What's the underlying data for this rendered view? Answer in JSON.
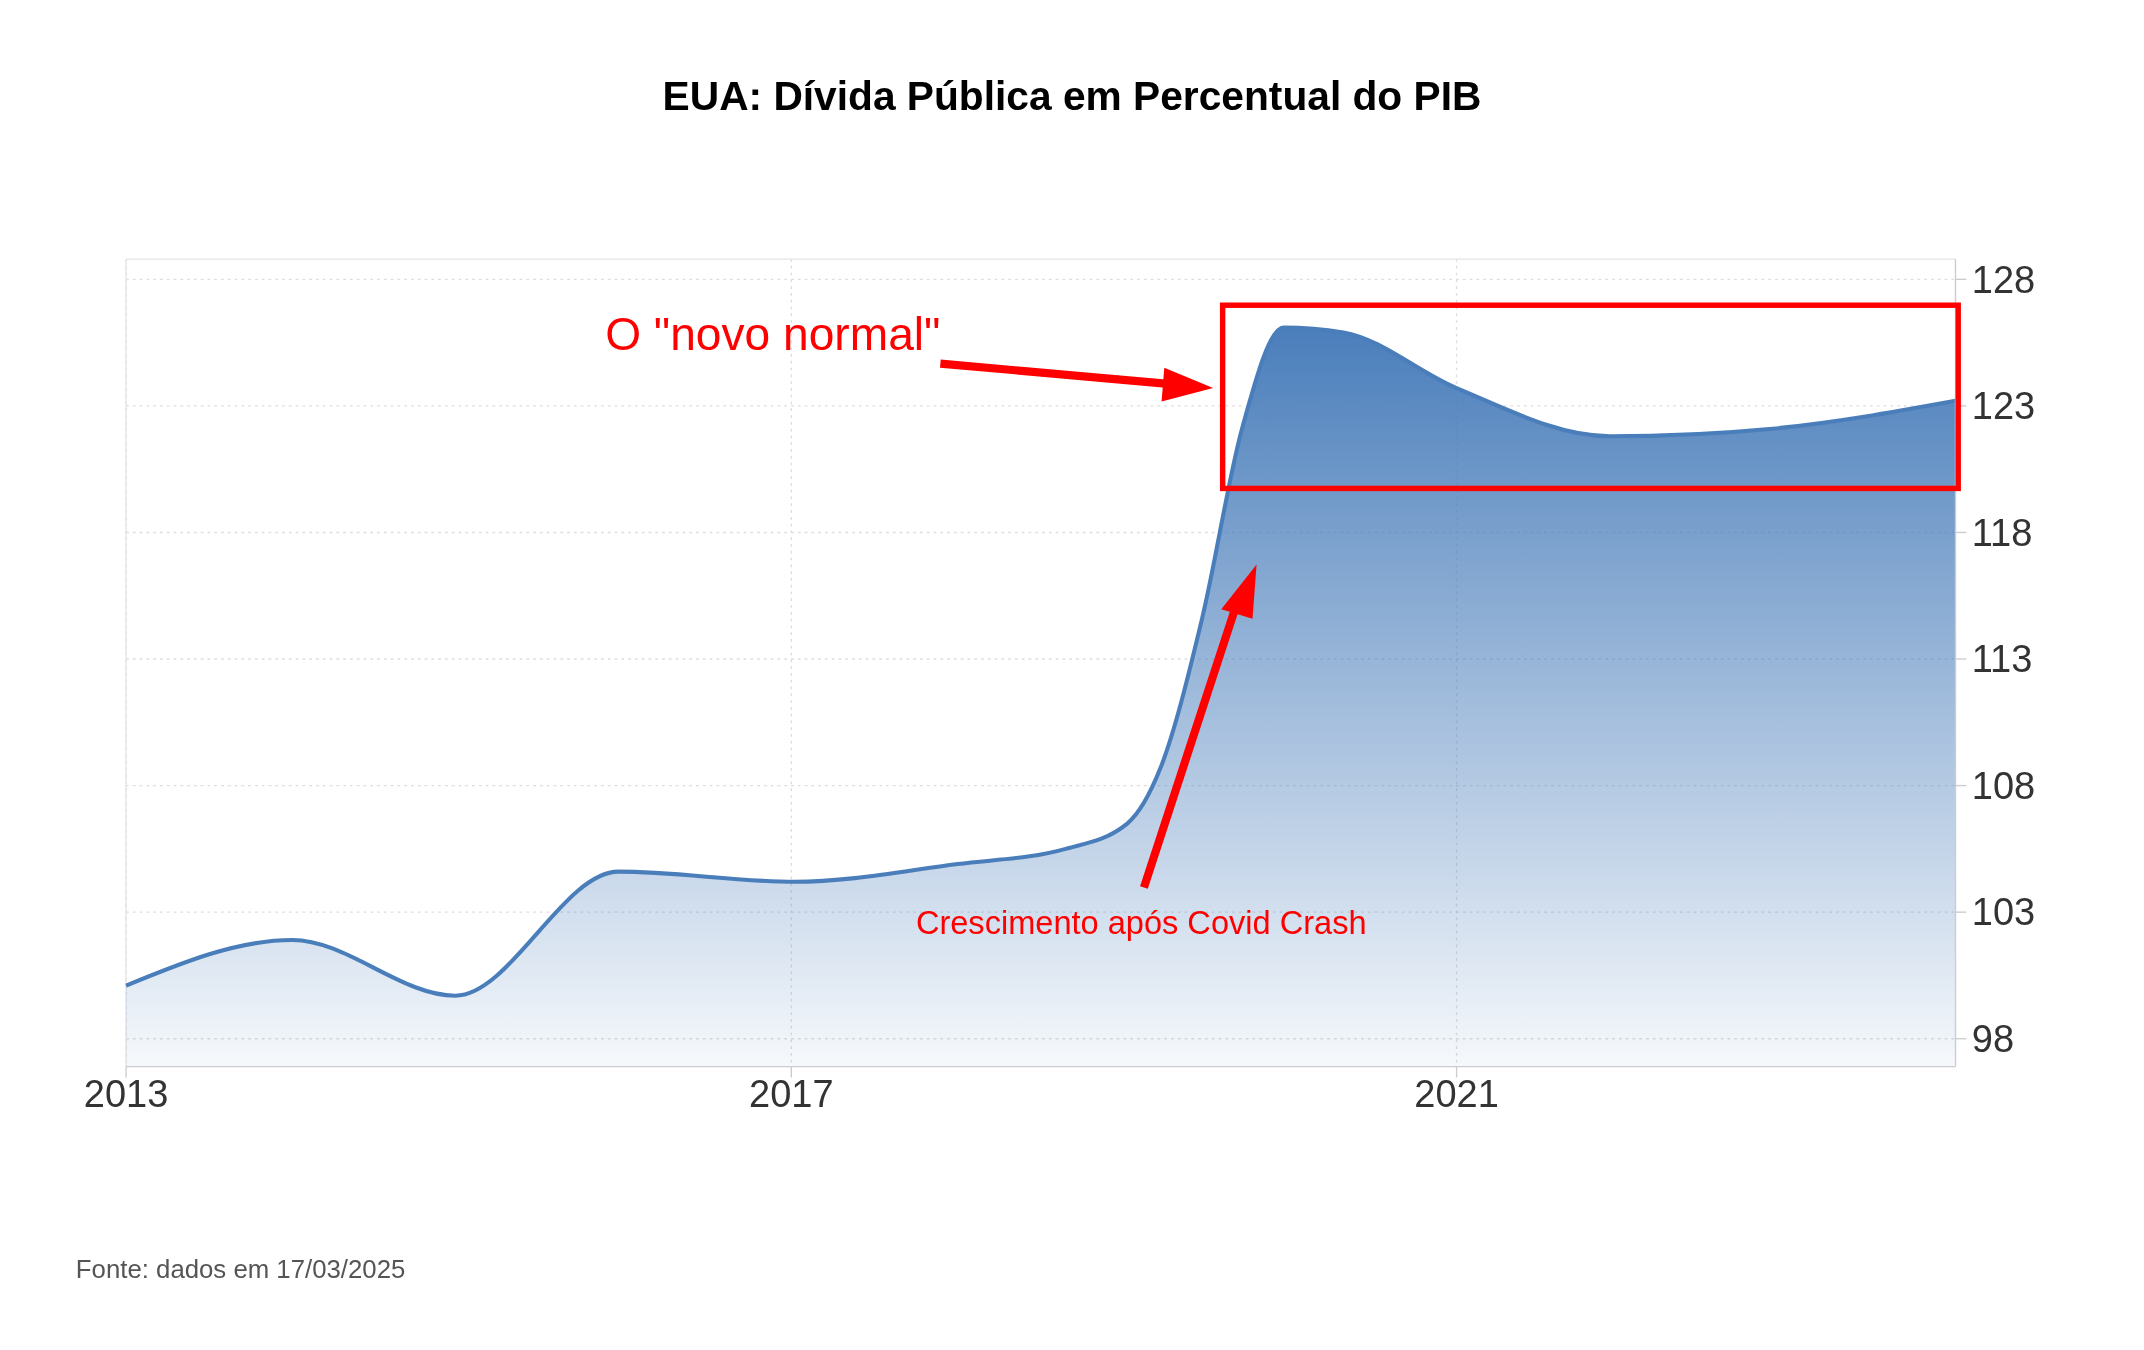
{
  "chart_data": {
    "type": "area",
    "title": "EUA: Dívida Pública em Percentual do PIB",
    "x": [
      2013.0,
      2014.0,
      2014.98,
      2015.96,
      2017.02,
      2018.0,
      2018.65,
      2019.02,
      2019.22,
      2019.47,
      2019.71,
      2019.96,
      2020.32,
      2021.0,
      2021.92,
      2022.9,
      2024.0
    ],
    "series": [
      {
        "color": "#4a7ebb",
        "values": [
          100.1,
          101.9,
          99.7,
          104.6,
          104.2,
          104.9,
          105.5,
          106.5,
          108.7,
          114.6,
          122.1,
          126.1,
          125.9,
          123.7,
          121.8,
          122.1,
          123.2
        ]
      }
    ],
    "xlim": [
      2013,
      2024
    ],
    "xticks": [
      2013,
      2017,
      2021
    ],
    "ylim": [
      96.9,
      128.8
    ],
    "yticks": [
      98,
      103,
      108,
      113,
      118,
      123,
      128
    ],
    "grid": true,
    "annotations": [
      "O \"novo normal\"",
      "Crescimento após Covid Crash",
      "Fonte: dados em 17/03/2025"
    ]
  }
}
